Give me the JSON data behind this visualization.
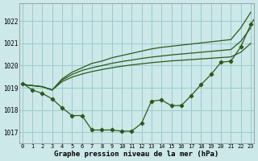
{
  "title": "Graphe pression niveau de la mer (hPa)",
  "background_color": "#cce8e8",
  "grid_color": "#99cccc",
  "line_color": "#2d5a1b",
  "ylim": [
    1016.5,
    1022.8
  ],
  "xlim": [
    -0.3,
    23.3
  ],
  "yticks": [
    1017,
    1018,
    1019,
    1020,
    1021,
    1022
  ],
  "xticks": [
    0,
    1,
    2,
    3,
    4,
    5,
    6,
    7,
    8,
    9,
    10,
    11,
    12,
    13,
    14,
    15,
    16,
    17,
    18,
    19,
    20,
    21,
    22,
    23
  ],
  "s_jagged": [
    1019.2,
    1018.9,
    1018.75,
    1018.5,
    1018.1,
    1017.75,
    1017.75,
    1017.1,
    1017.1,
    1017.1,
    1017.05,
    1017.05,
    1017.4,
    1018.4,
    1018.45,
    1018.2,
    1018.2,
    1018.65,
    1019.15,
    1019.6,
    1020.15,
    1020.2,
    1020.85,
    1021.85,
    1022.55
  ],
  "s_line1": [
    1019.15,
    1019.1,
    1019.05,
    1018.9,
    1019.4,
    1019.7,
    1019.9,
    1020.1,
    1020.2,
    1020.35,
    1020.45,
    1020.55,
    1020.65,
    1020.75,
    1020.82,
    1020.87,
    1020.92,
    1020.97,
    1021.02,
    1021.07,
    1021.12,
    1021.17,
    1021.7,
    1022.4
  ],
  "s_line2": [
    1019.15,
    1019.1,
    1019.05,
    1018.9,
    1019.35,
    1019.6,
    1019.78,
    1019.9,
    1020.0,
    1020.1,
    1020.18,
    1020.25,
    1020.32,
    1020.38,
    1020.43,
    1020.48,
    1020.52,
    1020.56,
    1020.6,
    1020.64,
    1020.68,
    1020.72,
    1021.1,
    1021.7
  ],
  "s_line3": [
    1019.15,
    1019.1,
    1019.05,
    1018.9,
    1019.28,
    1019.48,
    1019.62,
    1019.73,
    1019.82,
    1019.9,
    1019.97,
    1020.03,
    1020.08,
    1020.13,
    1020.17,
    1020.21,
    1020.24,
    1020.27,
    1020.3,
    1020.33,
    1020.36,
    1020.39,
    1020.6,
    1021.0
  ]
}
